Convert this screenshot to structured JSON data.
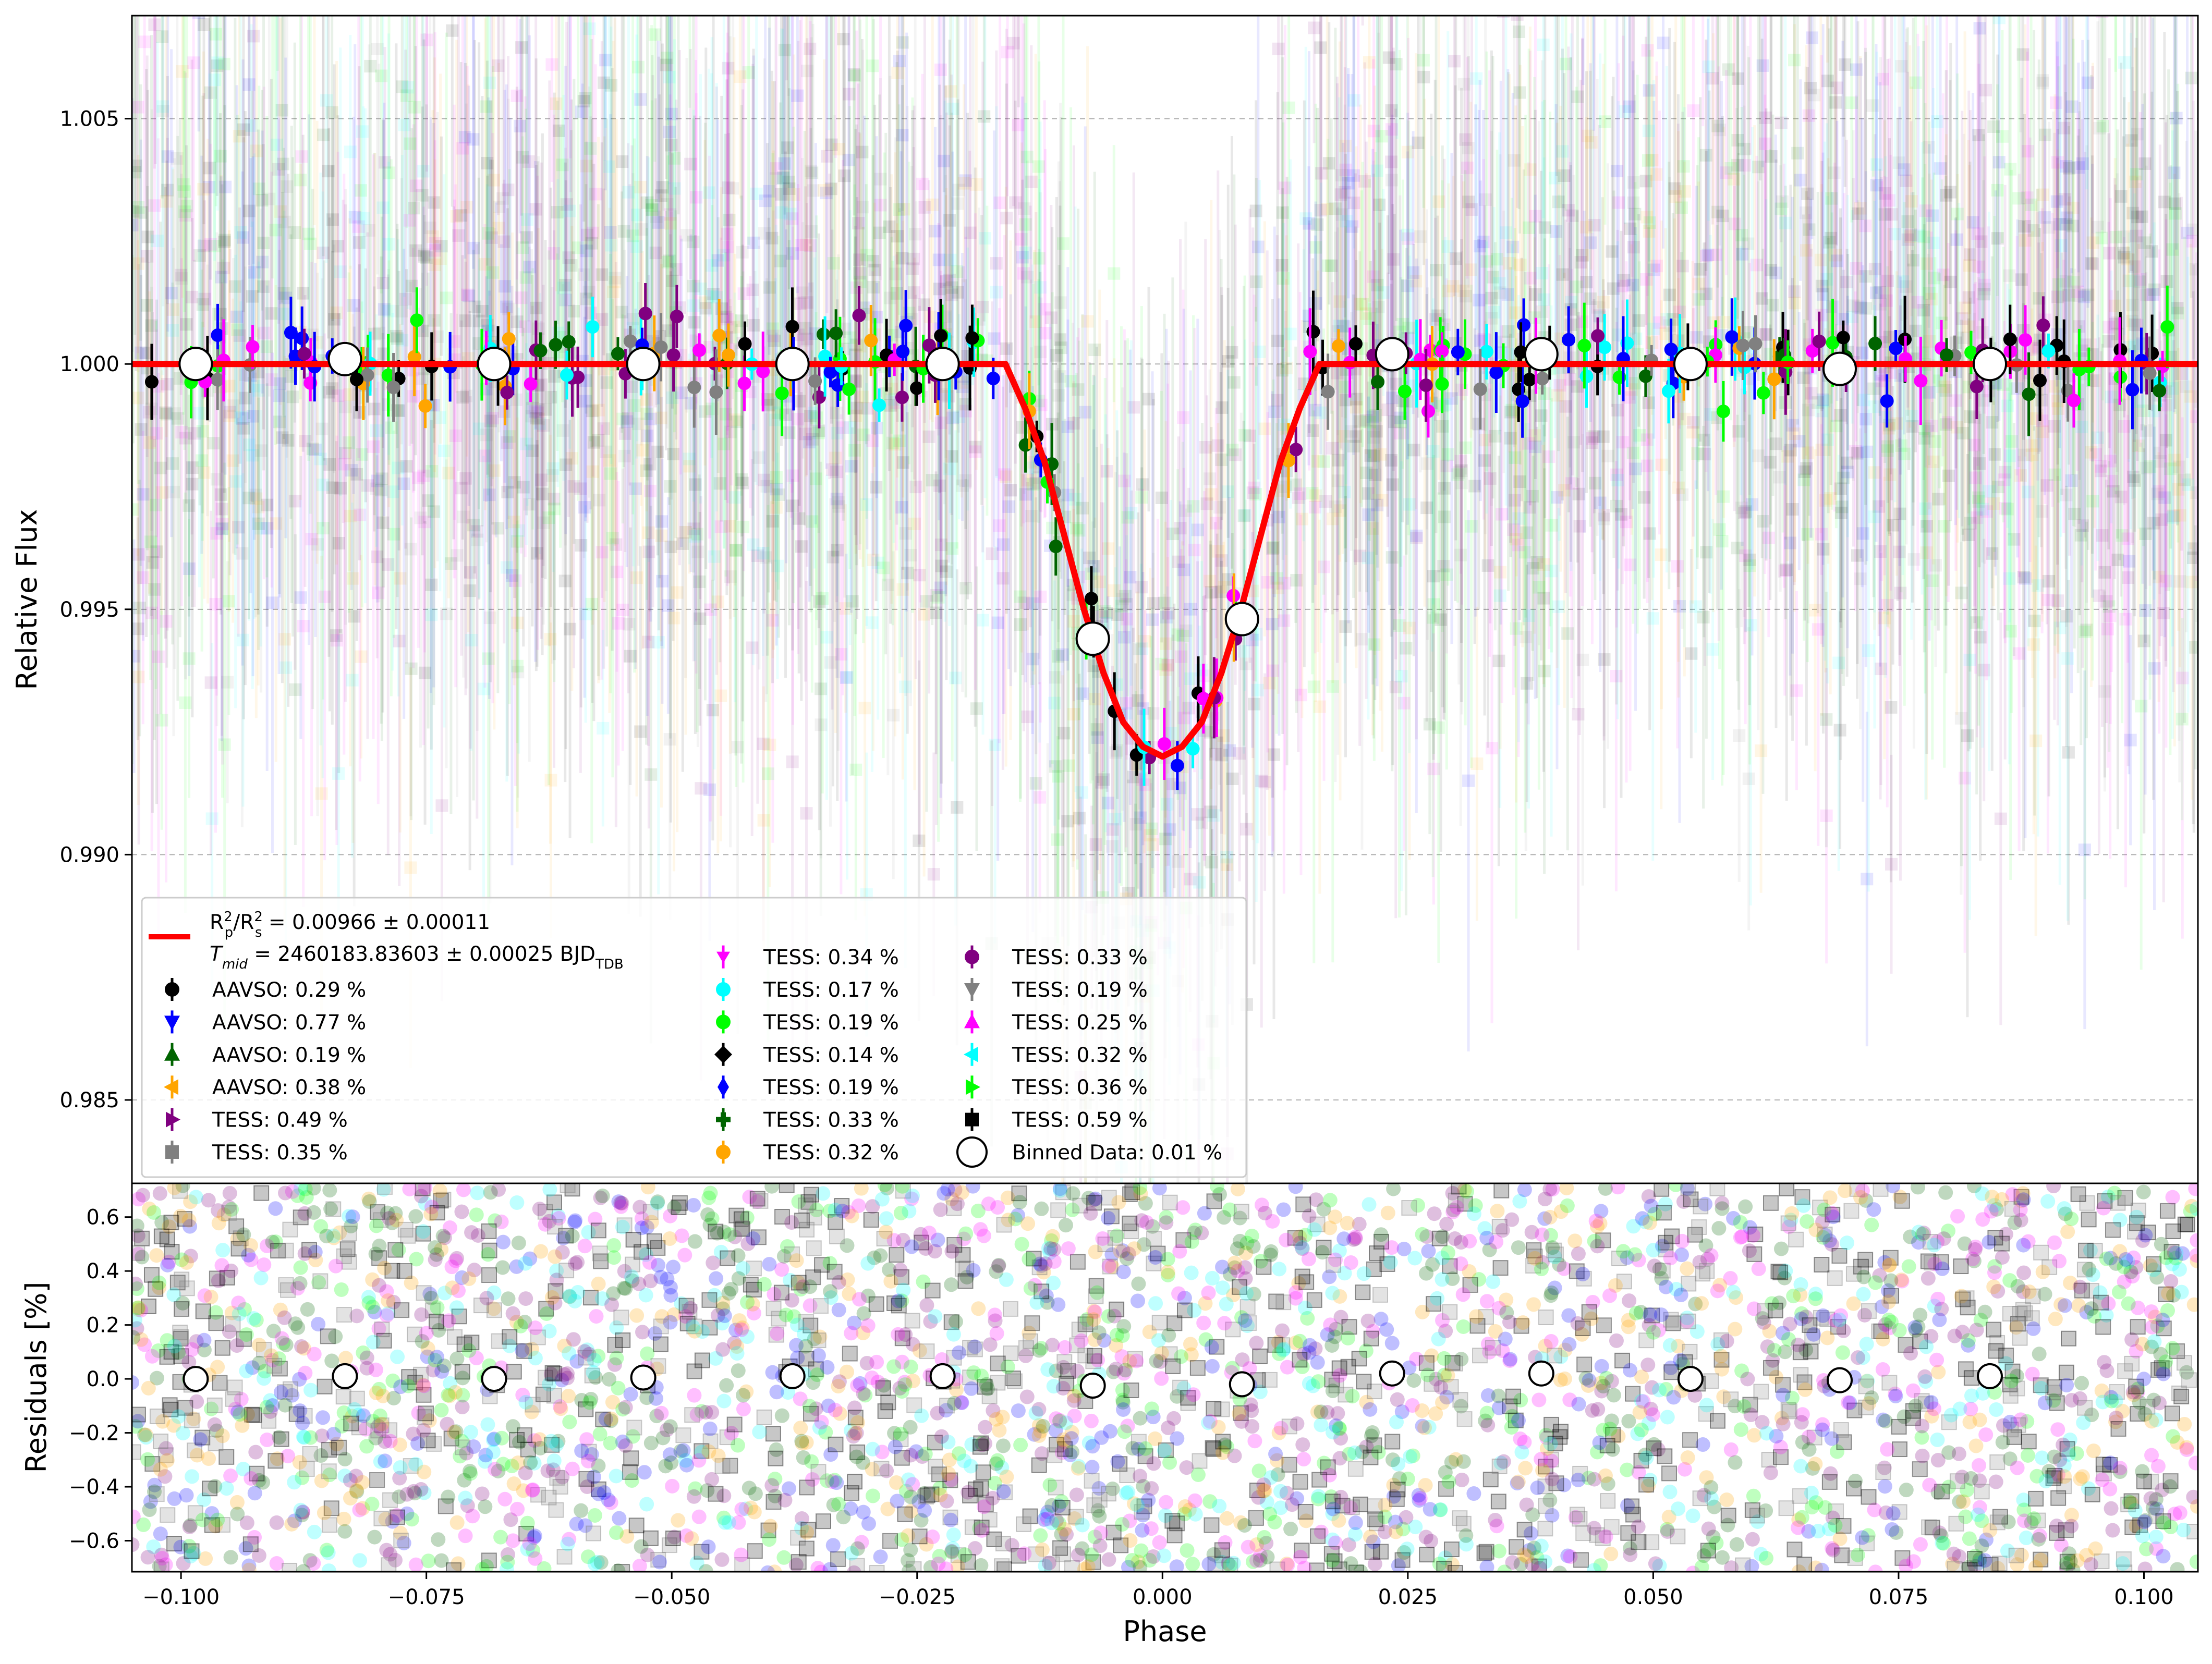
{
  "chart_data": [
    {
      "type": "scatter",
      "panel": "light-curve",
      "title": "",
      "xlabel": "",
      "ylabel": "Relative Flux",
      "xlim": [
        -0.105,
        0.1055
      ],
      "ylim": [
        0.9833,
        1.0071
      ],
      "yticks": [
        "0.985",
        "0.990",
        "0.995",
        "1.000",
        "1.005"
      ],
      "ytick_values": [
        0.985,
        0.99,
        0.995,
        1.0,
        1.005
      ],
      "grid": "horizontal dashed",
      "legend_position": "lower-left",
      "model": {
        "name": "R_p^2/R_s^2 = 0.00966 ± 0.00011",
        "name_line2": "T_mid = 2460183.83603 ± 0.00025 BJD_TDB",
        "color": "#ff0000",
        "x": [
          -0.105,
          -0.016,
          -0.014,
          -0.012,
          -0.01,
          -0.008,
          -0.006,
          -0.004,
          -0.002,
          0.0,
          0.002,
          0.004,
          0.006,
          0.008,
          0.01,
          0.012,
          0.014,
          0.016,
          0.1055
        ],
        "y": [
          1.0,
          1.0,
          0.9991,
          0.998,
          0.9965,
          0.995,
          0.9937,
          0.9927,
          0.9922,
          0.992,
          0.9922,
          0.9927,
          0.9937,
          0.995,
          0.9965,
          0.998,
          0.9991,
          1.0,
          1.0
        ]
      },
      "legend": {
        "model_label_line1": "R",
        "model_label_sup1": "2",
        "model_label_sub1": "p",
        "model_label_mid": "/R",
        "model_label_sup2": "2",
        "model_label_sub2": "s",
        "model_label_tail": " = 0.00966 ± 0.00011",
        "tmid_prefix": "T",
        "tmid_sub": "mid",
        "tmid_tail": " = 2460183.83603 ± 0.00025 BJD",
        "tmid_sub2": "TDB",
        "entries": [
          {
            "label": "AAVSO: 0.29 %",
            "color": "#000000",
            "marker": "circle"
          },
          {
            "label": "AAVSO: 0.77 %",
            "color": "#0000ff",
            "marker": "triangle-down"
          },
          {
            "label": "AAVSO: 0.19 %",
            "color": "#006400",
            "marker": "triangle-up"
          },
          {
            "label": "AAVSO: 0.38 %",
            "color": "#ffa500",
            "marker": "triangle-left"
          },
          {
            "label": "TESS: 0.49 %",
            "color": "#800080",
            "marker": "triangle-right"
          },
          {
            "label": "TESS: 0.35 %",
            "color": "#808080",
            "marker": "square"
          },
          {
            "label": "TESS: 0.34 %",
            "color": "#ff00ff",
            "marker": "tri"
          },
          {
            "label": "TESS: 0.17 %",
            "color": "#00ffff",
            "marker": "octagon"
          },
          {
            "label": "TESS: 0.19 %",
            "color": "#00ff00",
            "marker": "octagon"
          },
          {
            "label": "TESS: 0.14 %",
            "color": "#000000",
            "marker": "diamond"
          },
          {
            "label": "TESS: 0.19 %",
            "color": "#0000ff",
            "marker": "thin-diamond"
          },
          {
            "label": "TESS: 0.33 %",
            "color": "#006400",
            "marker": "plus"
          },
          {
            "label": "TESS: 0.32 %",
            "color": "#ffa500",
            "marker": "octagon"
          },
          {
            "label": "TESS: 0.33 %",
            "color": "#800080",
            "marker": "circle"
          },
          {
            "label": "TESS: 0.19 %",
            "color": "#808080",
            "marker": "triangle-down"
          },
          {
            "label": "TESS: 0.25 %",
            "color": "#ff00ff",
            "marker": "triangle-up"
          },
          {
            "label": "TESS: 0.32 %",
            "color": "#00ffff",
            "marker": "triangle-left"
          },
          {
            "label": "TESS: 0.36 %",
            "color": "#00ff00",
            "marker": "triangle-right"
          },
          {
            "label": "TESS: 0.59 %",
            "color": "#000000",
            "marker": "square"
          },
          {
            "label": "Binned Data: 0.01 %",
            "color": "#ffffff",
            "marker": "big-circle"
          }
        ]
      },
      "binned": {
        "name": "Binned Data: 0.01 %",
        "x": [
          -0.0985,
          -0.0833,
          -0.0681,
          -0.0529,
          -0.0377,
          -0.0224,
          -0.0071,
          0.0081,
          0.0234,
          0.0386,
          0.0538,
          0.069,
          0.0843
        ],
        "y": [
          1.0,
          1.0001,
          1.0,
          1.0,
          1.0,
          1.0,
          0.9944,
          0.9948,
          1.0002,
          1.0002,
          1.0,
          0.9999,
          1.0
        ]
      }
    },
    {
      "type": "scatter",
      "panel": "residuals",
      "title": "",
      "xlabel": "Phase",
      "ylabel": "Residuals [%]",
      "xlim": [
        -0.105,
        0.1055
      ],
      "ylim": [
        -0.715,
        0.725
      ],
      "xticks": [
        "−0.100",
        "−0.075",
        "−0.050",
        "−0.025",
        "0.000",
        "0.025",
        "0.050",
        "0.075",
        "0.100"
      ],
      "xtick_values": [
        -0.1,
        -0.075,
        -0.05,
        -0.025,
        0.0,
        0.025,
        0.05,
        0.075,
        0.1
      ],
      "yticks": [
        "−0.6",
        "−0.4",
        "−0.2",
        "0.0",
        "0.2",
        "0.4",
        "0.6"
      ],
      "ytick_values": [
        -0.6,
        -0.4,
        -0.2,
        0.0,
        0.2,
        0.4,
        0.6
      ],
      "grid": "none",
      "binned": {
        "name": "Binned Data: 0.01 %",
        "x": [
          -0.0985,
          -0.0833,
          -0.0681,
          -0.0529,
          -0.0377,
          -0.0224,
          -0.0071,
          0.0081,
          0.0234,
          0.0386,
          0.0538,
          0.069,
          0.0843
        ],
        "y": [
          0.0,
          0.01,
          0.0,
          0.005,
          0.01,
          0.01,
          -0.025,
          -0.02,
          0.02,
          0.02,
          0.0,
          -0.005,
          0.01
        ]
      }
    }
  ]
}
